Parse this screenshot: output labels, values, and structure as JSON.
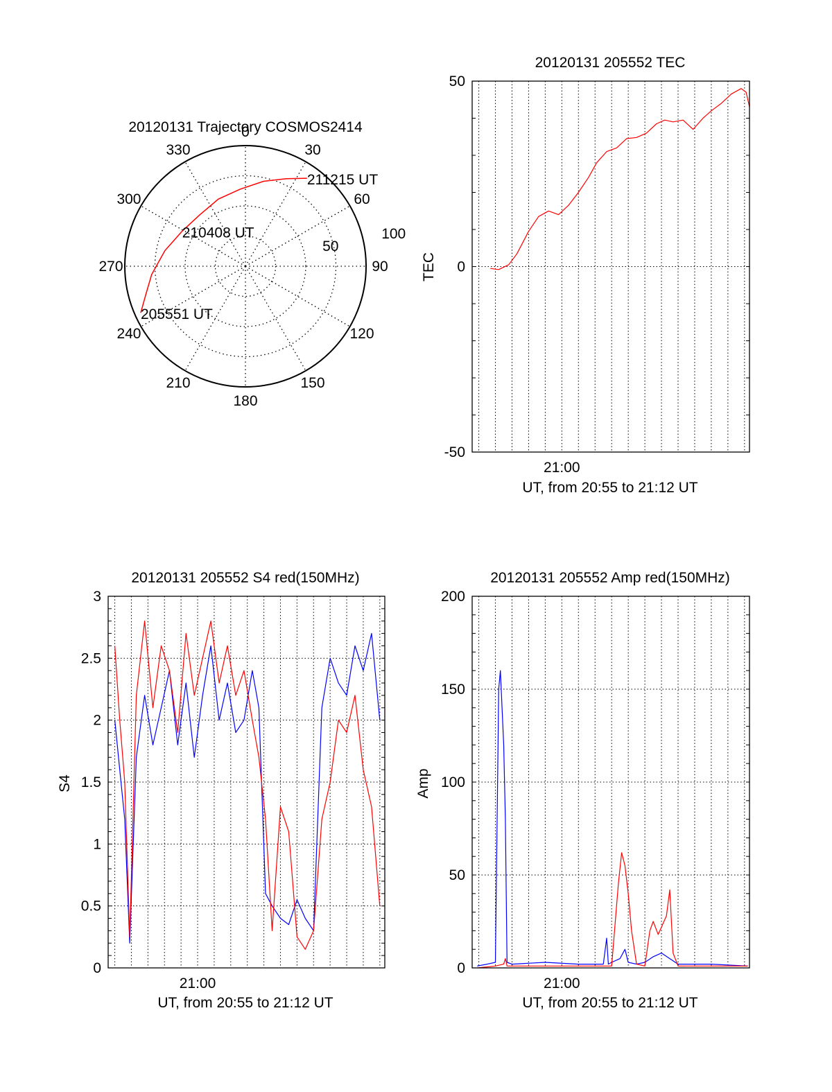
{
  "colors": {
    "red": "#ff0000",
    "blue": "#0000ff",
    "axis": "#000000",
    "grid": "#000000"
  },
  "chart_data": [
    {
      "id": "trajectory",
      "type": "polar",
      "title": "20120131 Trajectory COSMOS2414",
      "azimuth_ticks": [
        0,
        30,
        60,
        90,
        120,
        150,
        180,
        210,
        240,
        270,
        300,
        330
      ],
      "azimuth_tick_labels": [
        "0",
        "30",
        "60",
        "90",
        "120",
        "150",
        "180",
        "210",
        "240",
        "270",
        "300",
        "330"
      ],
      "radial_range": [
        0,
        100
      ],
      "radial_tick_labels": [
        {
          "value": 50,
          "label": "50"
        },
        {
          "value": 100,
          "label": "100"
        }
      ],
      "grid": true,
      "series": [
        {
          "color": "red",
          "points": [
            [
              246,
              95
            ],
            [
              254,
              86
            ],
            [
              265,
              78
            ],
            [
              281,
              68
            ],
            [
              299,
              60
            ],
            [
              318,
              57
            ],
            [
              338,
              60
            ],
            [
              356,
              64
            ],
            [
              12,
              72
            ],
            [
              25,
              80
            ],
            [
              35,
              89
            ]
          ]
        }
      ],
      "annotations": [
        {
          "text": "211215 UT",
          "az": 35,
          "r": 89
        },
        {
          "text": "210408 UT",
          "az": 299,
          "r": 60
        },
        {
          "text": "205551 UT",
          "az": 246,
          "r": 95
        }
      ]
    },
    {
      "id": "tec",
      "type": "line",
      "title": "20120131 205552 TEC",
      "ylabel": "TEC",
      "xlabel": "UT, from 20:55 to 21:12 UT",
      "xlim_minutes": [
        55.6,
        72.3
      ],
      "x_tick_labels": [
        {
          "value": 61,
          "label": "21:00"
        }
      ],
      "ylim": [
        -50,
        50
      ],
      "y_ticks": [
        -50,
        0,
        50
      ],
      "y_tick_labels": [
        "-50",
        "0",
        "50"
      ],
      "grid": true,
      "series": [
        {
          "color": "red",
          "x": [
            56.7,
            57.2,
            57.8,
            58.3,
            59.0,
            59.6,
            60.2,
            60.8,
            61.4,
            62.0,
            62.6,
            63.1,
            63.7,
            64.3,
            64.9,
            65.5,
            66.1,
            66.7,
            67.2,
            67.7,
            68.3,
            68.9,
            69.5,
            70.0,
            70.6,
            71.2,
            71.8,
            72.1,
            72.3
          ],
          "y": [
            -0.5,
            -0.8,
            0.5,
            3.5,
            9.5,
            13.5,
            15.0,
            14.0,
            16.5,
            20.0,
            24.0,
            28.0,
            31.0,
            32.0,
            34.5,
            34.8,
            36.0,
            38.5,
            39.5,
            39.0,
            39.5,
            37.0,
            40.0,
            42.0,
            44.0,
            46.5,
            48.0,
            47.0,
            43.0
          ]
        }
      ]
    },
    {
      "id": "s4",
      "type": "line",
      "title": "20120131 205552 S4 red(150MHz)",
      "ylabel": "S4",
      "xlabel": "UT, from 20:55 to 21:12 UT",
      "xlim_minutes": [
        55.6,
        72.3
      ],
      "x_tick_labels": [
        {
          "value": 61,
          "label": "21:00"
        }
      ],
      "ylim": [
        0,
        3
      ],
      "y_ticks": [
        0,
        0.5,
        1,
        1.5,
        2,
        2.5,
        3
      ],
      "y_tick_labels": [
        "0",
        "0.5",
        "1",
        "1.5",
        "2",
        "2.5",
        "3"
      ],
      "grid": true,
      "series": [
        {
          "color": "blue",
          "x": [
            56.0,
            56.3,
            56.6,
            56.9,
            57.3,
            57.8,
            58.3,
            58.8,
            59.3,
            59.8,
            60.3,
            60.8,
            61.3,
            61.8,
            62.3,
            62.8,
            63.3,
            63.8,
            64.3,
            64.7,
            65.1,
            65.5,
            66.0,
            66.5,
            67.0,
            67.5,
            68.0,
            68.5,
            69.0,
            69.5,
            70.0,
            70.5,
            71.0,
            71.5,
            72.0
          ],
          "y": [
            2.0,
            1.6,
            1.2,
            0.2,
            1.7,
            2.2,
            1.8,
            2.1,
            2.4,
            1.8,
            2.3,
            1.7,
            2.2,
            2.6,
            2.0,
            2.3,
            1.9,
            2.0,
            2.4,
            2.1,
            0.6,
            0.5,
            0.4,
            0.35,
            0.55,
            0.4,
            0.3,
            2.1,
            2.5,
            2.3,
            2.2,
            2.6,
            2.4,
            2.7,
            2.0
          ]
        },
        {
          "color": "red",
          "x": [
            56.0,
            56.3,
            56.6,
            56.9,
            57.3,
            57.8,
            58.3,
            58.8,
            59.3,
            59.8,
            60.3,
            60.8,
            61.3,
            61.8,
            62.3,
            62.8,
            63.3,
            63.8,
            64.3,
            64.7,
            65.1,
            65.5,
            66.0,
            66.5,
            67.0,
            67.5,
            68.0,
            68.5,
            69.0,
            69.5,
            70.0,
            70.5,
            71.0,
            71.5,
            72.0
          ],
          "y": [
            2.6,
            2.0,
            1.5,
            0.25,
            2.2,
            2.8,
            2.1,
            2.6,
            2.4,
            1.9,
            2.7,
            2.2,
            2.5,
            2.8,
            2.3,
            2.6,
            2.2,
            2.4,
            2.0,
            1.7,
            1.2,
            0.3,
            1.3,
            1.1,
            0.25,
            0.15,
            0.3,
            1.2,
            1.5,
            2.0,
            1.9,
            2.2,
            1.6,
            1.3,
            0.5
          ]
        }
      ]
    },
    {
      "id": "amp",
      "type": "line",
      "title": "20120131 205552 Amp red(150MHz)",
      "ylabel": "Amp",
      "xlabel": "UT, from 20:55 to 21:12 UT",
      "xlim_minutes": [
        55.6,
        72.3
      ],
      "x_tick_labels": [
        {
          "value": 61,
          "label": "21:00"
        }
      ],
      "ylim": [
        0,
        200
      ],
      "y_ticks": [
        0,
        50,
        100,
        150,
        200
      ],
      "y_tick_labels": [
        "0",
        "50",
        "100",
        "150",
        "200"
      ],
      "grid": true,
      "series": [
        {
          "color": "blue",
          "x": [
            55.9,
            56.5,
            57.0,
            57.2,
            57.3,
            57.4,
            57.5,
            57.6,
            57.7,
            58.0,
            60.0,
            62.0,
            63.5,
            63.7,
            63.8,
            64.0,
            64.5,
            64.8,
            65.0,
            65.5,
            66.0,
            66.5,
            67.0,
            67.5,
            68.0,
            70.0,
            72.2
          ],
          "y": [
            1,
            2,
            3,
            150,
            160,
            140,
            120,
            80,
            3,
            2,
            3,
            2,
            2,
            16,
            2,
            3,
            5,
            10,
            3,
            2,
            3,
            6,
            8,
            5,
            2,
            2,
            1
          ]
        },
        {
          "color": "red",
          "x": [
            55.9,
            57.0,
            57.5,
            57.6,
            57.7,
            58.0,
            60.0,
            62.0,
            64.0,
            64.4,
            64.6,
            64.8,
            65.0,
            65.2,
            65.5,
            66.0,
            66.3,
            66.5,
            66.8,
            67.0,
            67.3,
            67.5,
            67.7,
            68.0,
            70.0,
            72.2
          ],
          "y": [
            0,
            1,
            2,
            5,
            1,
            1,
            1,
            1,
            1,
            45,
            62,
            55,
            40,
            20,
            2,
            1,
            20,
            25,
            18,
            22,
            28,
            42,
            8,
            1,
            1,
            1
          ]
        }
      ]
    }
  ]
}
